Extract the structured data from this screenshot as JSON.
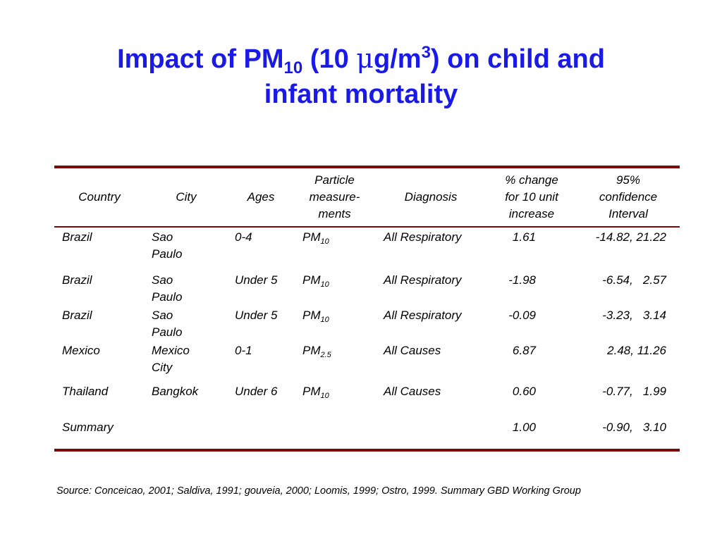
{
  "title": {
    "line1_prefix": "Impact of PM",
    "line1_sub": "10",
    "line1_mid": " (10 ",
    "mu": "μ",
    "line1_unit": "g/m",
    "line1_sup": "3",
    "line1_suffix": ") on child and",
    "line2": "infant mortality"
  },
  "table": {
    "headers": [
      [
        "Country"
      ],
      [
        "City"
      ],
      [
        "Ages"
      ],
      [
        "Particle",
        "measure-",
        "ments"
      ],
      [
        "Diagnosis"
      ],
      [
        "% change",
        "for 10 unit",
        "increase"
      ],
      [
        "95%",
        "confidence",
        "Interval"
      ]
    ],
    "rows": [
      {
        "country": "Brazil",
        "city": "Sao Paulo",
        "ages": "0-4",
        "pm": "PM",
        "pm_sub": "10",
        "diagnosis": "All Respiratory",
        "change": "1.61",
        "ci": "-14.82, 21.22"
      },
      {
        "country": "Brazil",
        "city": "Sao Paulo",
        "ages": "Under 5",
        "pm": "PM",
        "pm_sub": "10",
        "diagnosis": "All Respiratory",
        "change": "-1.98",
        "ci": "-6.54,   2.57"
      },
      {
        "country": "Brazil",
        "city": "Sao Paulo",
        "ages": "Under 5",
        "pm": "PM",
        "pm_sub": "10",
        "diagnosis": "All Respiratory",
        "change": "-0.09",
        "ci": "-3.23,   3.14"
      },
      {
        "country": "Mexico",
        "city": "Mexico City",
        "ages": "0-1",
        "pm": "PM",
        "pm_sub": "2.5",
        "diagnosis": "All Causes",
        "change": "6.87",
        "ci": "2.48, 11.26"
      },
      {
        "country": "Thailand",
        "city": "Bangkok",
        "ages": "Under 6",
        "pm": "PM",
        "pm_sub": "10",
        "diagnosis": "All Causes",
        "change": "0.60",
        "ci": "-0.77,   1.99"
      },
      {
        "country": "Summary",
        "city": "",
        "ages": "",
        "pm": "",
        "pm_sub": "",
        "diagnosis": "",
        "change": "1.00",
        "ci": "-0.90,   3.10"
      }
    ]
  },
  "source": "Source: Conceicao, 2001; Saldiva, 1991; gouveia, 2000; Loomis, 1999; Ostro, 1999. Summary GBD Working Group",
  "colors": {
    "title": "#1a1ae6",
    "rule": "#7a0a0a"
  }
}
